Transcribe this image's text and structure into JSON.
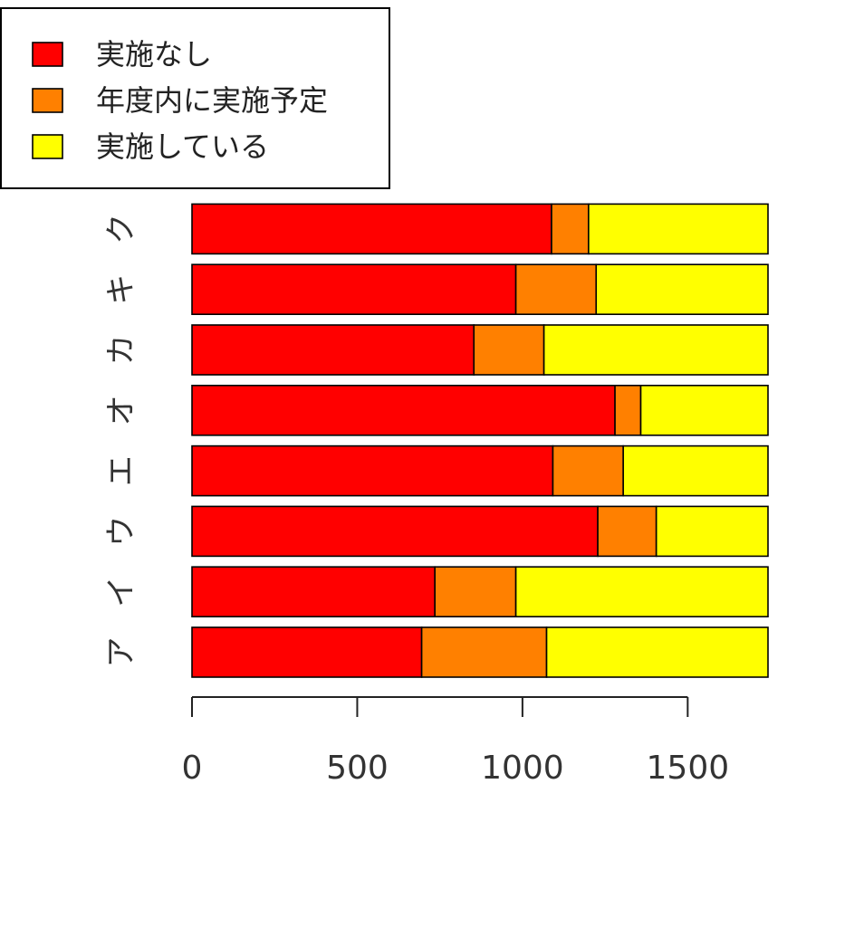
{
  "chart_data": {
    "type": "bar",
    "orientation": "horizontal",
    "stacked": true,
    "categories": [
      "ア",
      "イ",
      "ウ",
      "エ",
      "オ",
      "カ",
      "キ",
      "ク"
    ],
    "series": [
      {
        "name": "実施なし",
        "color": "#ff0000",
        "values": [
          695,
          735,
          1228,
          1092,
          1280,
          853,
          980,
          1088
        ]
      },
      {
        "name": "年度内に実施予定",
        "color": "#ff8000",
        "values": [
          378,
          245,
          177,
          213,
          78,
          212,
          243,
          112
        ]
      },
      {
        "name": "実施している",
        "color": "#ffff00",
        "values": [
          670,
          763,
          338,
          438,
          385,
          678,
          520,
          543
        ]
      }
    ],
    "xlim": [
      0,
      1743
    ],
    "xticks": [
      0,
      500,
      1000,
      1500
    ],
    "xtick_labels": [
      "0",
      "500",
      "1000",
      "1500"
    ],
    "title": "",
    "xlabel": "",
    "ylabel": "",
    "grid": false,
    "legend": {
      "position": "top-left"
    }
  }
}
